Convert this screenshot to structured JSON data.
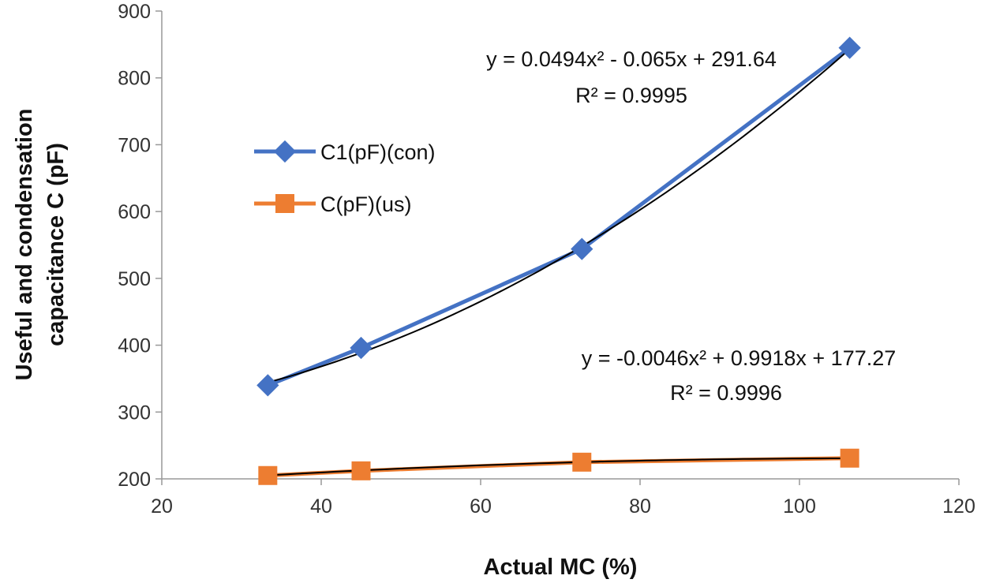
{
  "chart_data": {
    "type": "scatter",
    "xlabel": "Actual MC (%)",
    "ylabel_lines": [
      "Useful  and condensation",
      "capacitance C (pF)"
    ],
    "xlim": [
      20,
      120
    ],
    "ylim": [
      200,
      900
    ],
    "xticks": [
      20,
      40,
      60,
      80,
      100,
      120
    ],
    "yticks": [
      200,
      300,
      400,
      500,
      600,
      700,
      800,
      900
    ],
    "grid": false,
    "legend_position": "left-middle",
    "series": [
      {
        "name": "C1(pF)(con)",
        "color": "#4472C4",
        "marker": "diamond",
        "x": [
          33.3,
          45.0,
          72.7,
          106.3
        ],
        "y": [
          340,
          396,
          544,
          845
        ],
        "trendline": {
          "type": "polynomial",
          "coeffs": [
            0.0494,
            -0.065,
            291.64
          ],
          "equation": "y = 0.0494x² - 0.065x + 291.64",
          "r2": "R² = 0.9995"
        }
      },
      {
        "name": "C(pF)(us)",
        "color": "#ED7D31",
        "marker": "square",
        "x": [
          33.3,
          45.0,
          72.7,
          106.3
        ],
        "y": [
          205,
          212,
          225,
          231
        ],
        "trendline": {
          "type": "polynomial",
          "coeffs": [
            -0.0046,
            0.9918,
            177.27
          ],
          "equation": "y = -0.0046x² + 0.9918x + 177.27",
          "r2": "R² = 0.9996"
        }
      }
    ]
  }
}
